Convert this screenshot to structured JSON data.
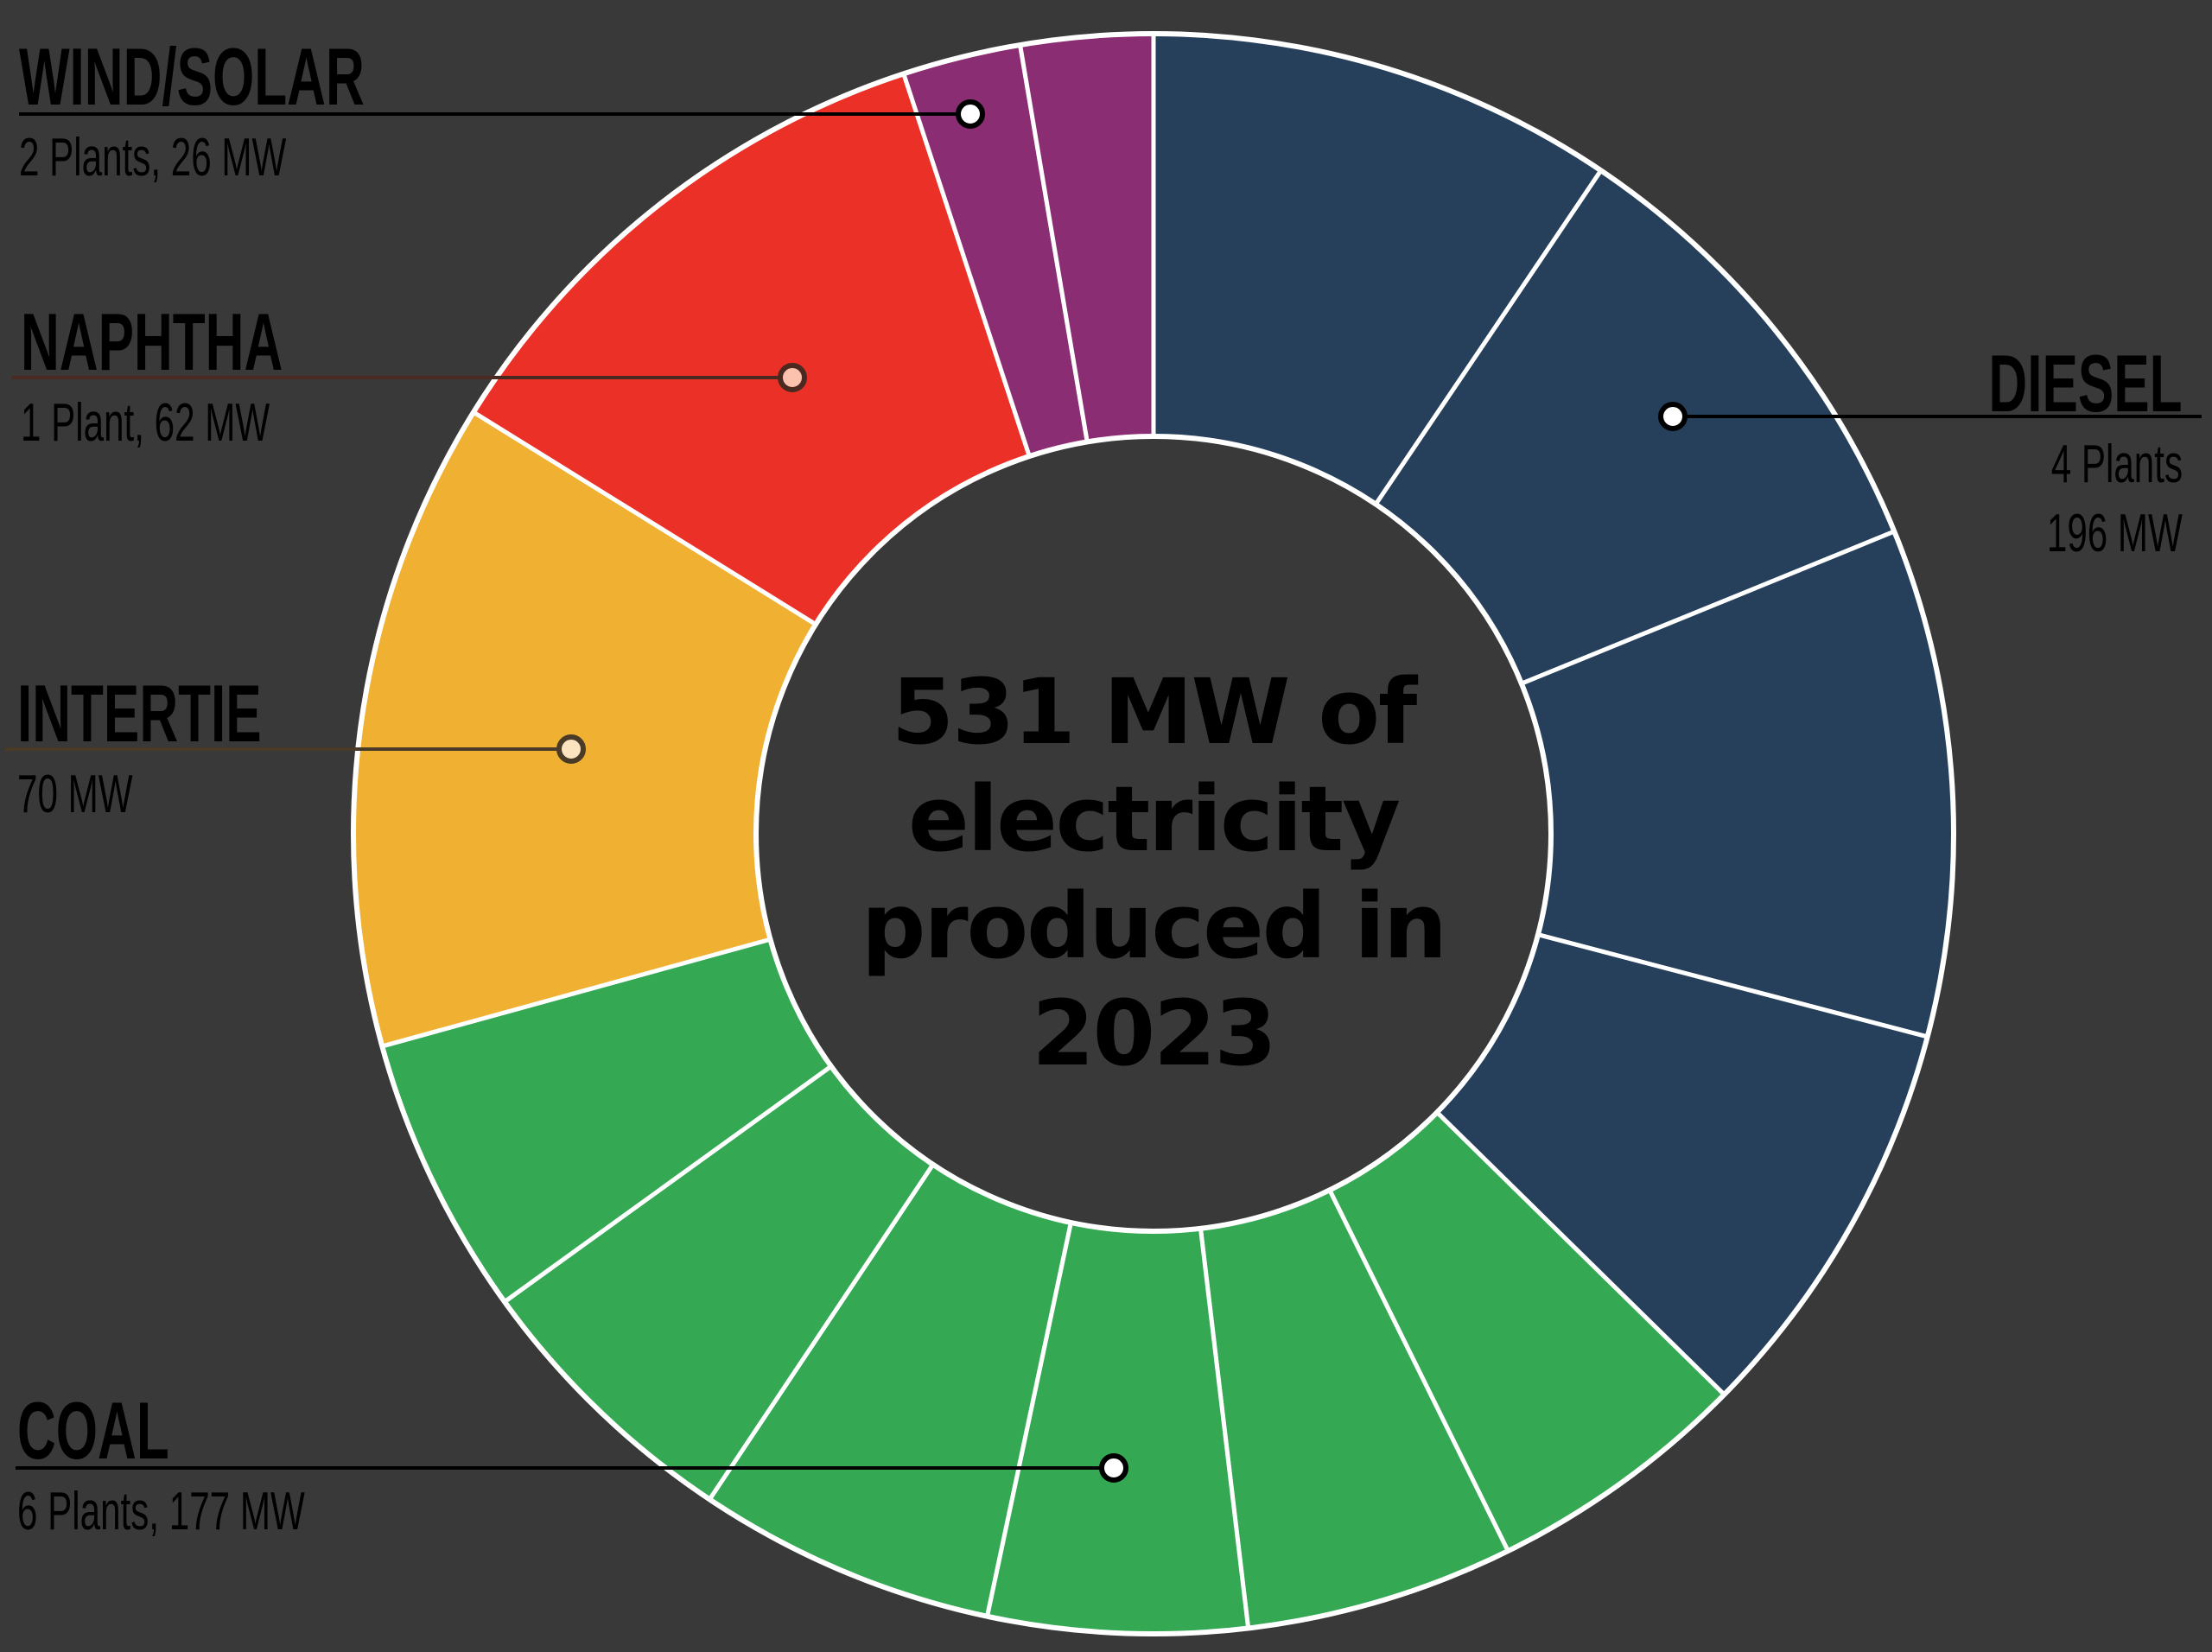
{
  "chart_data": {
    "type": "pie",
    "variant": "donut",
    "title": "531 MW of electricity produced in 2023",
    "total_mw": 531,
    "year": 2023,
    "center": [
      1335,
      965
    ],
    "outer_radius": 926,
    "inner_radius": 460,
    "categories": [
      "Diesel",
      "Coal",
      "Intertie",
      "Naphtha",
      "Wind/Solar"
    ],
    "values": [
      196,
      177,
      70,
      62,
      26
    ],
    "units": "MW",
    "series": [
      {
        "name": "DIESEL",
        "plants": 4,
        "mw": 196,
        "color": "#26405C",
        "segments": [
          {
            "start": 0,
            "end": 34.0
          },
          {
            "start": 34.0,
            "end": 67.8
          },
          {
            "start": 67.8,
            "end": 104.7
          },
          {
            "start": 104.7,
            "end": 134.5
          }
        ]
      },
      {
        "name": "COAL",
        "plants": 6,
        "mw": 177,
        "color": "#34A853",
        "segments": [
          {
            "start": 134.5,
            "end": 153.7
          },
          {
            "start": 153.7,
            "end": 173.2
          },
          {
            "start": 173.2,
            "end": 192.0
          },
          {
            "start": 192.0,
            "end": 213.7
          },
          {
            "start": 213.7,
            "end": 234.2
          },
          {
            "start": 234.2,
            "end": 254.6
          }
        ]
      },
      {
        "name": "INTERTIE",
        "plants": null,
        "mw": 70,
        "color": "#F0B032",
        "segments": [
          {
            "start": 254.6,
            "end": 301.8
          }
        ]
      },
      {
        "name": "NAPHTHA",
        "plants": 1,
        "mw": 62,
        "color": "#EB3028",
        "segments": [
          {
            "start": 301.8,
            "end": 341.8
          }
        ]
      },
      {
        "name": "WIND/SOLAR",
        "plants": 2,
        "mw": 26,
        "color": "#8B2D72",
        "segments": [
          {
            "start": 341.8,
            "end": 350.4
          },
          {
            "start": 350.4,
            "end": 360
          }
        ]
      }
    ],
    "legend_position": "callouts"
  },
  "center_label": {
    "line1": "531 MW of",
    "line2": "electricity",
    "line3": "produced in",
    "line4": "2023"
  },
  "callouts": {
    "wind_solar": {
      "title": "WIND/SOLAR",
      "sub": "2 Plants, 26 MW",
      "dot": [
        1123,
        132
      ],
      "line_x0": 22,
      "dot_fill": "#FFFFFF",
      "dot_stroke": "#000000"
    },
    "naphtha": {
      "title": "NAPHTHA",
      "sub": "1 Plant, 62 MW",
      "dot": [
        917,
        437
      ],
      "line_x0": 14,
      "dot_fill": "#FDC2AE",
      "dot_stroke": "#4A2A20"
    },
    "intertie": {
      "title": "INTERTIE",
      "sub": "70 MW",
      "dot": [
        661,
        867
      ],
      "line_x0": 6,
      "dot_fill": "#FBE3C0",
      "dot_stroke": "#4A3A28"
    },
    "coal": {
      "title": "COAL",
      "sub": "6 Plants, 177 MW",
      "dot": [
        1289,
        1699
      ],
      "line_x0": 18,
      "dot_fill": "#FFFFFF",
      "dot_stroke": "#000000"
    },
    "diesel": {
      "title": "DIESEL",
      "sub1": "4 Plants",
      "sub2": "196 MW",
      "dot": [
        1936,
        482
      ],
      "line_x1": 2548,
      "dot_fill": "#FFFFFF",
      "dot_stroke": "#000000"
    }
  },
  "colors": {
    "background": "#393939",
    "separator": "#FFFFFF",
    "text": "#000000"
  }
}
